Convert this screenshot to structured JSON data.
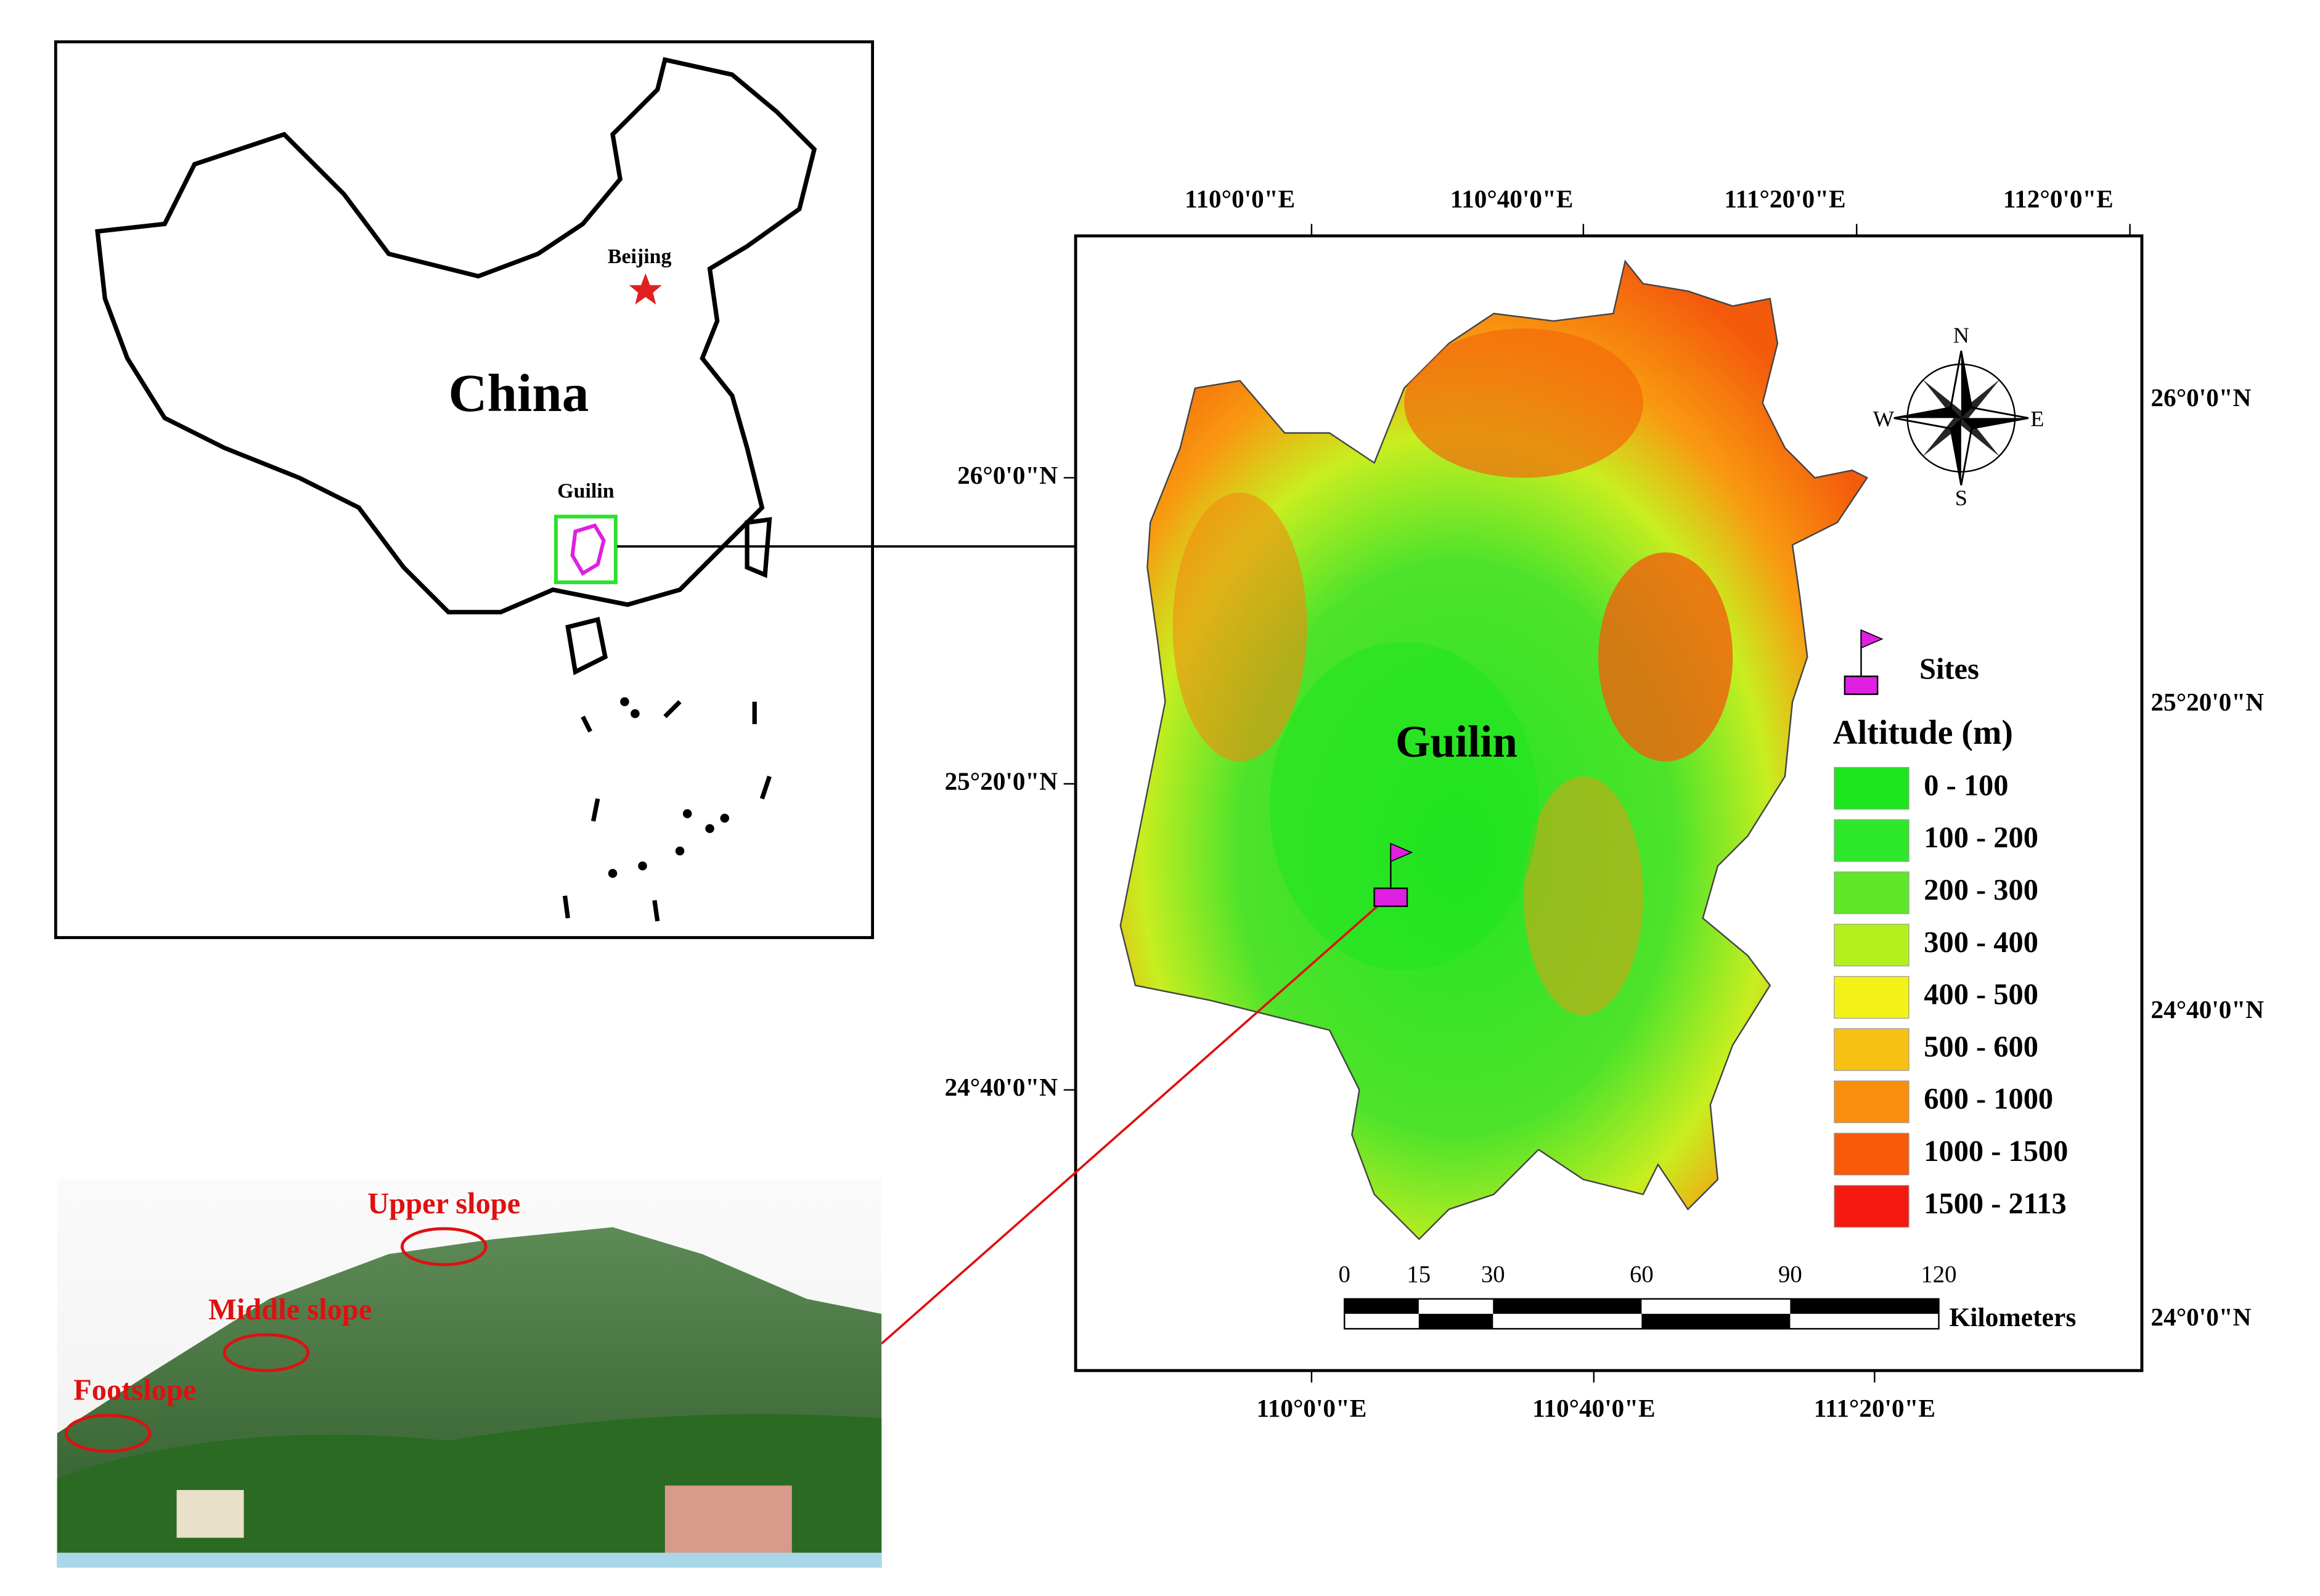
{
  "inset": {
    "country": "China",
    "capital": "Beijing",
    "city": "Guilin"
  },
  "map": {
    "top_lon_ticks": [
      "110°0'0\"E",
      "110°40'0\"E",
      "111°20'0\"E",
      "112°0'0\"E"
    ],
    "bottom_lon_ticks": [
      "110°0'0\"E",
      "110°40'0\"E",
      "111°20'0\"E"
    ],
    "left_lat_ticks": [
      "26°0'0\"N",
      "25°20'0\"N",
      "24°40'0\"N"
    ],
    "right_lat_ticks": [
      "26°0'0\"N",
      "25°20'0\"N",
      "24°40'0\"N",
      "24°0'0\"N"
    ],
    "region_label": "Guilin",
    "compass": {
      "north": "N",
      "south": "S",
      "east": "E",
      "west": "W"
    },
    "sites_label": "Sites",
    "legend": {
      "title": "Altitude (m)",
      "classes": [
        {
          "label": "0 - 100",
          "color": "#1ee61e"
        },
        {
          "label": "100 - 200",
          "color": "#2ee82a"
        },
        {
          "label": "200 - 300",
          "color": "#5ee828"
        },
        {
          "label": "300 - 400",
          "color": "#b4f01e"
        },
        {
          "label": "400 - 500",
          "color": "#f2f218"
        },
        {
          "label": "500 - 600",
          "color": "#f8c012"
        },
        {
          "label": "600 - 1000",
          "color": "#f8900e"
        },
        {
          "label": "1000 - 1500",
          "color": "#f85a0a"
        },
        {
          "label": "1500 - 2113",
          "color": "#f41a10"
        }
      ]
    },
    "scale_bar": {
      "ticks": [
        0,
        15,
        30,
        60,
        90,
        120
      ],
      "unit": "Kilometers"
    }
  },
  "photo": {
    "labels": [
      "Upper slope",
      "Middle slope",
      "Footslope"
    ]
  }
}
